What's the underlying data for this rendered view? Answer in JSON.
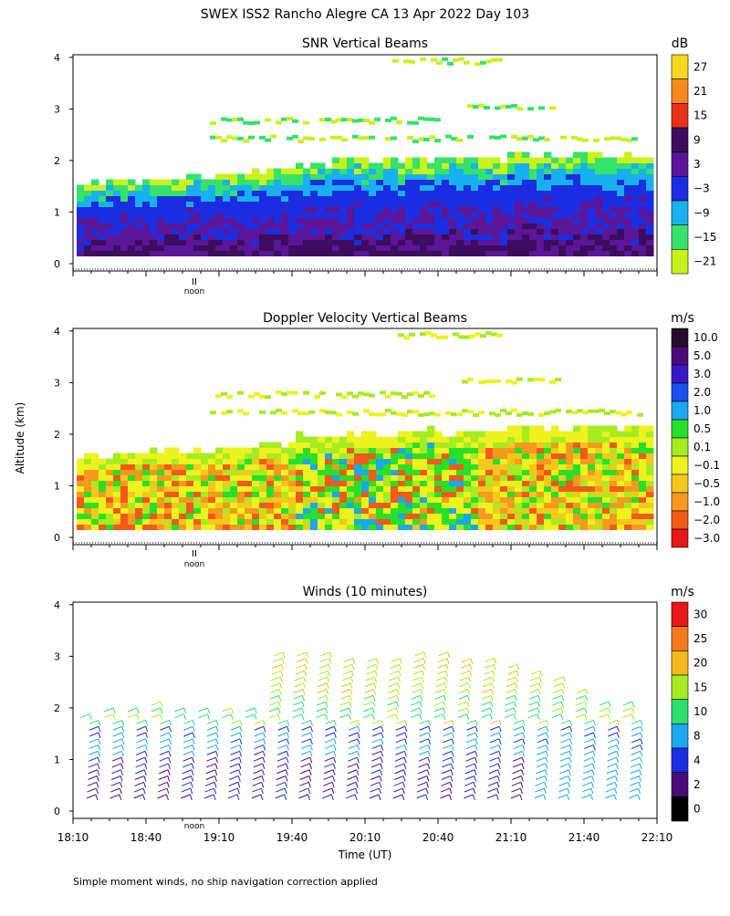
{
  "page_title": "SWEX ISS2 Rancho Alegre CA  13 Apr 2022 Day 103",
  "shared_ylabel": "Altitude (km)",
  "xlabel": "Time (UT)",
  "noon_label": "noon",
  "noon_marker": "II",
  "footnote": "Simple moment winds, no ship navigation correction applied",
  "chart_data": [
    {
      "type": "heatmap",
      "title": "SNR Vertical Beams",
      "ylim": [
        0,
        4
      ],
      "yticks": [
        "0",
        "1",
        "2",
        "3",
        "4"
      ],
      "colorbar_unit": "dB",
      "colorbar_labels": [
        "27",
        "21",
        "15",
        "9",
        "3",
        "−3",
        "−9",
        "−15",
        "−21"
      ],
      "colors": [
        "#f9d81f",
        "#f78a1e",
        "#e8301b",
        "#3d0c5e",
        "#5a1598",
        "#1a2de0",
        "#19b0f0",
        "#36e26a",
        "#c9f21c"
      ],
      "echo_top_km": [
        1.5,
        1.55,
        1.6,
        1.65,
        1.7,
        1.8,
        1.9,
        1.95,
        1.95,
        2.0,
        2.0,
        2.0,
        2.05,
        2.05,
        2.1,
        2.1
      ]
    },
    {
      "type": "heatmap",
      "title": "Doppler Velocity Vertical Beams",
      "ylim": [
        0,
        4
      ],
      "yticks": [
        "0",
        "1",
        "2",
        "3",
        "4"
      ],
      "colorbar_unit": "m/s",
      "colorbar_labels": [
        "10.0",
        "5.0",
        "3.0",
        "2.0",
        "1.0",
        "0.5",
        "0.1",
        "−0.1",
        "−0.5",
        "−1.0",
        "−2.0",
        "−3.0"
      ],
      "colors": [
        "#2a0a2a",
        "#4a0a7a",
        "#3818c8",
        "#1a50f0",
        "#1aa8f0",
        "#28e028",
        "#a6ec22",
        "#eef21e",
        "#f5c81e",
        "#f59a1e",
        "#f25a1a",
        "#e81818"
      ],
      "echo_top_km": [
        1.5,
        1.55,
        1.6,
        1.65,
        1.7,
        1.8,
        1.9,
        1.95,
        1.95,
        2.0,
        2.0,
        2.0,
        2.05,
        2.05,
        2.1,
        2.1
      ]
    },
    {
      "type": "scatter",
      "title": "Winds (10 minutes)",
      "ylim": [
        0,
        4
      ],
      "yticks": [
        "0",
        "1",
        "2",
        "3",
        "4"
      ],
      "colorbar_unit": "m/s",
      "colorbar_labels": [
        "30",
        "25",
        "20",
        "15",
        "10",
        "8",
        "4",
        "2",
        "0"
      ],
      "colors": [
        "#e81818",
        "#f57a1e",
        "#f5b81e",
        "#a6ec22",
        "#2ee070",
        "#1aa8f0",
        "#1a2de0",
        "#4a0a7a",
        "#000000"
      ],
      "x_ticks": [
        "18:10",
        "18:40",
        "19:10",
        "19:40",
        "20:10",
        "20:40",
        "21:10",
        "21:40",
        "22:10"
      ],
      "profiles": 24,
      "max_alt_km": [
        1.9,
        2.0,
        2.0,
        2.1,
        2.0,
        2.0,
        2.0,
        2.0,
        3.1,
        3.1,
        3.1,
        3.0,
        3.0,
        3.0,
        3.1,
        3.1,
        3.0,
        2.9,
        2.8,
        2.7,
        2.6,
        2.4,
        2.1,
        2.1
      ]
    }
  ]
}
